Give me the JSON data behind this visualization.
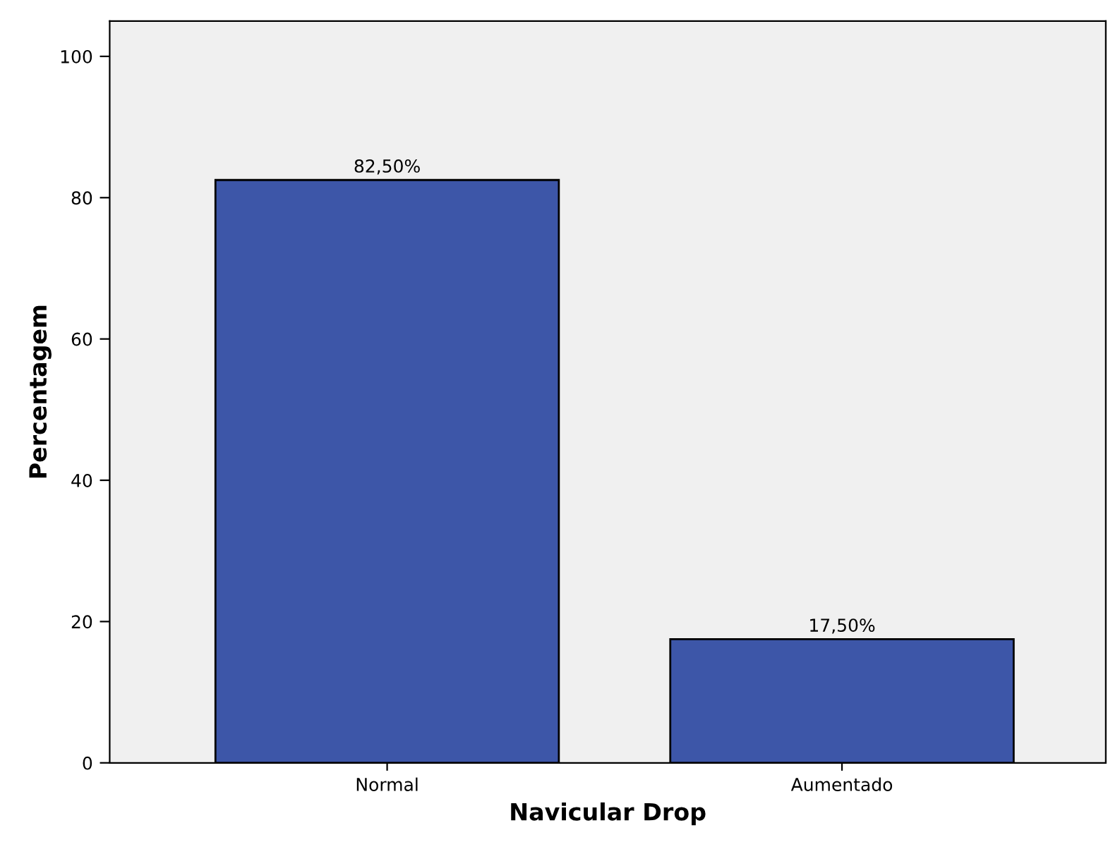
{
  "chart_data": {
    "type": "bar",
    "xlabel": "Navicular Drop",
    "ylabel": "Percentagem",
    "categories": [
      "Normal",
      "Aumentado"
    ],
    "values": [
      82.5,
      17.5
    ],
    "value_labels": [
      "82,50%",
      "17,50%"
    ],
    "color": "#3d56a8",
    "ylim": [
      0,
      105
    ],
    "yticks": [
      0,
      20,
      40,
      60,
      80,
      100
    ],
    "grid": false,
    "legend": false
  }
}
